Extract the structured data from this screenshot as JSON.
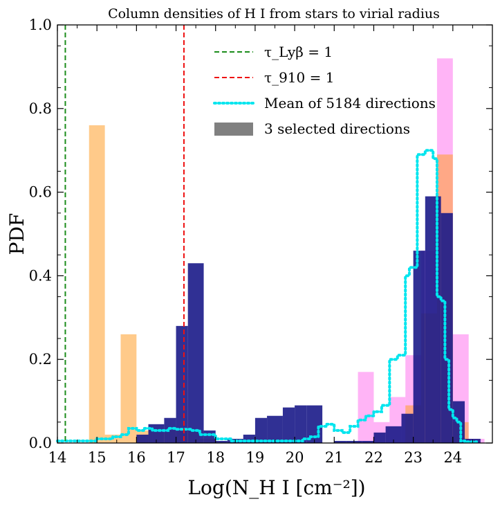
{
  "chart_data": {
    "type": "histogram",
    "title": "Column densities of H I from stars to virial radius",
    "xlabel": "Log(N_H I [cm⁻²])",
    "ylabel": "PDF",
    "xlim": [
      14,
      25
    ],
    "ylim": [
      0,
      1.0
    ],
    "xticks": [
      "14",
      "15",
      "16",
      "17",
      "18",
      "19",
      "20",
      "21",
      "22",
      "23",
      "24"
    ],
    "yticks": [
      "0.0",
      "0.2",
      "0.4",
      "0.6",
      "0.8",
      "1.0"
    ],
    "grid": false,
    "legend_position": "top-right",
    "legend": [
      {
        "label": "τ_Lyβ = 1",
        "kind": "dashed",
        "color": "#1a8c1a"
      },
      {
        "label": "τ_910 = 1",
        "kind": "dashed",
        "color": "#ee1111"
      },
      {
        "label": "Mean of 5184 directions",
        "kind": "dotted",
        "color": "#00e5ee"
      },
      {
        "label": "3 selected directions",
        "kind": "patch",
        "color": "#808080"
      }
    ],
    "vlines": [
      {
        "x": 14.2,
        "color": "#1a8c1a"
      },
      {
        "x": 17.2,
        "color": "#ee1111"
      }
    ],
    "series": [
      {
        "color": "#ff6aed",
        "opacity": 0.5,
        "bins": [
          [
            21.6,
            22.0,
            0.17
          ],
          [
            22.0,
            22.4,
            0.05
          ],
          [
            22.4,
            22.8,
            0.11
          ],
          [
            22.8,
            23.2,
            0.21
          ],
          [
            23.2,
            23.6,
            0.46
          ],
          [
            23.6,
            24.0,
            0.92
          ],
          [
            24.0,
            24.4,
            0.26
          ],
          [
            24.4,
            24.8,
            0.01
          ]
        ]
      },
      {
        "color": "#ff9e2a",
        "opacity": 0.55,
        "bins": [
          [
            14.8,
            15.2,
            0.76
          ],
          [
            15.2,
            15.6,
            0.02
          ],
          [
            15.6,
            16.0,
            0.26
          ],
          [
            16.0,
            16.4,
            0.03
          ],
          [
            16.4,
            16.8,
            0.025
          ],
          [
            16.8,
            17.2,
            0.03
          ],
          [
            17.2,
            17.6,
            0.03
          ],
          [
            17.6,
            18.0,
            0.01
          ],
          [
            22.8,
            23.2,
            0.09
          ],
          [
            23.2,
            23.6,
            0.31
          ],
          [
            23.6,
            24.0,
            0.69
          ],
          [
            24.0,
            24.4,
            0.05
          ]
        ]
      },
      {
        "color": "#1a1a88",
        "opacity": 0.9,
        "bins": [
          [
            16.0,
            16.3,
            0.02
          ],
          [
            16.3,
            16.7,
            0.045
          ],
          [
            16.7,
            17.0,
            0.06
          ],
          [
            17.0,
            17.3,
            0.28
          ],
          [
            17.3,
            17.7,
            0.43
          ],
          [
            17.7,
            18.0,
            0.03
          ],
          [
            18.0,
            18.3,
            0.005
          ],
          [
            18.3,
            18.7,
            0.01
          ],
          [
            18.7,
            19.0,
            0.02
          ],
          [
            19.0,
            19.3,
            0.06
          ],
          [
            19.3,
            19.7,
            0.065
          ],
          [
            19.7,
            20.0,
            0.085
          ],
          [
            20.0,
            20.3,
            0.09
          ],
          [
            20.3,
            20.7,
            0.09
          ],
          [
            21.0,
            21.3,
            0.005
          ],
          [
            21.3,
            21.7,
            0.005
          ],
          [
            21.7,
            22.0,
            0.005
          ],
          [
            22.0,
            22.3,
            0.025
          ],
          [
            22.3,
            22.7,
            0.04
          ],
          [
            22.7,
            23.0,
            0.07
          ],
          [
            23.0,
            23.3,
            0.46
          ],
          [
            23.3,
            23.7,
            0.59
          ],
          [
            23.7,
            24.0,
            0.55
          ],
          [
            24.0,
            24.3,
            0.1
          ],
          [
            24.3,
            24.7,
            0.01
          ]
        ]
      }
    ],
    "mean_line": [
      [
        14.0,
        0.005
      ],
      [
        14.8,
        0.005
      ],
      [
        15.0,
        0.01
      ],
      [
        15.4,
        0.015
      ],
      [
        15.6,
        0.02
      ],
      [
        15.8,
        0.035
      ],
      [
        16.0,
        0.03
      ],
      [
        16.2,
        0.035
      ],
      [
        16.4,
        0.03
      ],
      [
        16.8,
        0.035
      ],
      [
        17.0,
        0.033
      ],
      [
        17.4,
        0.03
      ],
      [
        17.6,
        0.02
      ],
      [
        18.0,
        0.01
      ],
      [
        18.4,
        0.005
      ],
      [
        19.2,
        0.005
      ],
      [
        19.8,
        0.005
      ],
      [
        20.2,
        0.01
      ],
      [
        20.4,
        0.015
      ],
      [
        20.6,
        0.04
      ],
      [
        20.8,
        0.045
      ],
      [
        21.0,
        0.03
      ],
      [
        21.2,
        0.025
      ],
      [
        21.4,
        0.04
      ],
      [
        21.6,
        0.055
      ],
      [
        21.8,
        0.065
      ],
      [
        22.0,
        0.075
      ],
      [
        22.2,
        0.09
      ],
      [
        22.4,
        0.2
      ],
      [
        22.6,
        0.21
      ],
      [
        22.8,
        0.4
      ],
      [
        22.9,
        0.42
      ],
      [
        23.1,
        0.69
      ],
      [
        23.3,
        0.7
      ],
      [
        23.5,
        0.68
      ],
      [
        23.6,
        0.35
      ],
      [
        23.7,
        0.34
      ],
      [
        23.8,
        0.2
      ],
      [
        23.9,
        0.08
      ],
      [
        24.0,
        0.06
      ],
      [
        24.1,
        0.05
      ],
      [
        24.2,
        0.005
      ],
      [
        24.3,
        0.003
      ],
      [
        24.6,
        0.003
      ]
    ]
  }
}
